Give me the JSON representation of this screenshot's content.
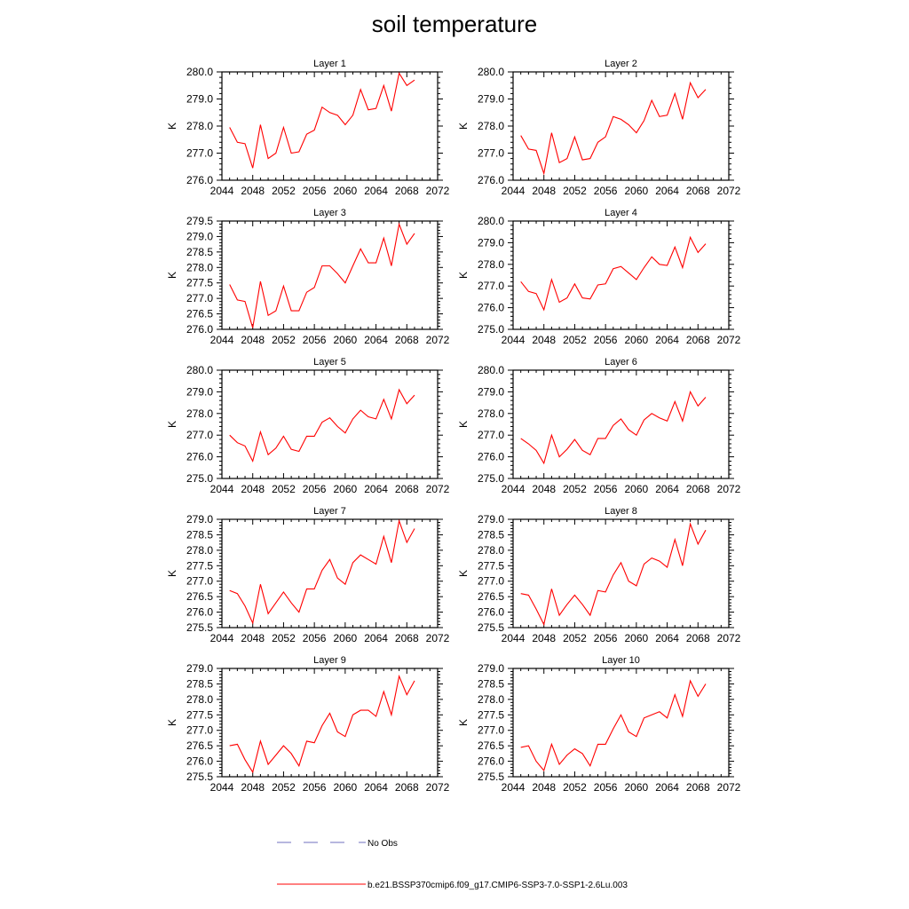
{
  "figure_title": "soil temperature",
  "legend": {
    "obs_label": "No Obs",
    "obs_color": "#6f6fbf",
    "model_label": "b.e21.BSSP370cmip6.f09_g17.CMIP6-SSP3-7.0-SSP1-2.6Lu.003",
    "model_color": "#ff0000"
  },
  "chart_data": [
    {
      "type": "line",
      "title": "Layer 1",
      "ylabel": "K",
      "xlim": [
        2044,
        2072
      ],
      "ylim": [
        276.0,
        280.0
      ],
      "xticks": [
        "2044",
        "2048",
        "2052",
        "2056",
        "2060",
        "2064",
        "2068",
        "2072"
      ],
      "yticks": [
        "276.0",
        "277.0",
        "278.0",
        "279.0",
        "280.0"
      ],
      "x": [
        2045,
        2046,
        2047,
        2048,
        2049,
        2050,
        2051,
        2052,
        2053,
        2054,
        2055,
        2056,
        2057,
        2058,
        2059,
        2060,
        2061,
        2062,
        2063,
        2064,
        2065,
        2066,
        2067,
        2068,
        2069
      ],
      "y": [
        277.95,
        277.4,
        277.35,
        276.45,
        278.05,
        276.8,
        277.0,
        277.95,
        277.0,
        277.05,
        277.7,
        277.85,
        278.7,
        278.5,
        278.4,
        278.05,
        278.4,
        279.35,
        278.6,
        278.65,
        279.5,
        278.55,
        279.95,
        279.5,
        279.7
      ]
    },
    {
      "type": "line",
      "title": "Layer 2",
      "ylabel": "K",
      "xlim": [
        2044,
        2072
      ],
      "ylim": [
        276.0,
        280.0
      ],
      "xticks": [
        "2044",
        "2048",
        "2052",
        "2056",
        "2060",
        "2064",
        "2068",
        "2072"
      ],
      "yticks": [
        "276.0",
        "277.0",
        "278.0",
        "279.0",
        "280.0"
      ],
      "x": [
        2045,
        2046,
        2047,
        2048,
        2049,
        2050,
        2051,
        2052,
        2053,
        2054,
        2055,
        2056,
        2057,
        2058,
        2059,
        2060,
        2061,
        2062,
        2063,
        2064,
        2065,
        2066,
        2067,
        2068,
        2069
      ],
      "y": [
        277.65,
        277.15,
        277.1,
        276.25,
        277.75,
        276.65,
        276.8,
        277.6,
        276.75,
        276.8,
        277.4,
        277.6,
        278.35,
        278.25,
        278.05,
        277.75,
        278.2,
        278.95,
        278.35,
        278.4,
        279.2,
        278.25,
        279.6,
        279.05,
        279.35
      ]
    },
    {
      "type": "line",
      "title": "Layer 3",
      "ylabel": "K",
      "xlim": [
        2044,
        2072
      ],
      "ylim": [
        276.0,
        279.5
      ],
      "xticks": [
        "2044",
        "2048",
        "2052",
        "2056",
        "2060",
        "2064",
        "2068",
        "2072"
      ],
      "yticks": [
        "276.0",
        "276.5",
        "277.0",
        "277.5",
        "278.0",
        "278.5",
        "279.0",
        "279.5"
      ],
      "x": [
        2045,
        2046,
        2047,
        2048,
        2049,
        2050,
        2051,
        2052,
        2053,
        2054,
        2055,
        2056,
        2057,
        2058,
        2059,
        2060,
        2061,
        2062,
        2063,
        2064,
        2065,
        2066,
        2067,
        2068,
        2069
      ],
      "y": [
        277.45,
        276.95,
        276.9,
        276.05,
        277.55,
        276.45,
        276.6,
        277.4,
        276.6,
        276.6,
        277.2,
        277.35,
        278.05,
        278.05,
        277.8,
        277.5,
        278.05,
        278.6,
        278.15,
        278.15,
        278.95,
        278.05,
        279.4,
        278.75,
        279.1
      ]
    },
    {
      "type": "line",
      "title": "Layer 4",
      "ylabel": "K",
      "xlim": [
        2044,
        2072
      ],
      "ylim": [
        275.0,
        280.0
      ],
      "xticks": [
        "2044",
        "2048",
        "2052",
        "2056",
        "2060",
        "2064",
        "2068",
        "2072"
      ],
      "yticks": [
        "275.0",
        "276.0",
        "277.0",
        "278.0",
        "279.0",
        "280.0"
      ],
      "x": [
        2045,
        2046,
        2047,
        2048,
        2049,
        2050,
        2051,
        2052,
        2053,
        2054,
        2055,
        2056,
        2057,
        2058,
        2059,
        2060,
        2061,
        2062,
        2063,
        2064,
        2065,
        2066,
        2067,
        2068,
        2069
      ],
      "y": [
        277.2,
        276.75,
        276.65,
        275.9,
        277.3,
        276.25,
        276.45,
        277.1,
        276.45,
        276.4,
        277.05,
        277.1,
        277.8,
        277.9,
        277.6,
        277.3,
        277.85,
        278.35,
        278.0,
        277.95,
        278.8,
        277.85,
        279.25,
        278.55,
        278.95
      ]
    },
    {
      "type": "line",
      "title": "Layer 5",
      "ylabel": "K",
      "xlim": [
        2044,
        2072
      ],
      "ylim": [
        275.0,
        280.0
      ],
      "xticks": [
        "2044",
        "2048",
        "2052",
        "2056",
        "2060",
        "2064",
        "2068",
        "2072"
      ],
      "yticks": [
        "275.0",
        "276.0",
        "277.0",
        "278.0",
        "279.0",
        "280.0"
      ],
      "x": [
        2045,
        2046,
        2047,
        2048,
        2049,
        2050,
        2051,
        2052,
        2053,
        2054,
        2055,
        2056,
        2057,
        2058,
        2059,
        2060,
        2061,
        2062,
        2063,
        2064,
        2065,
        2066,
        2067,
        2068,
        2069
      ],
      "y": [
        277.0,
        276.65,
        276.5,
        275.8,
        277.15,
        276.1,
        276.4,
        276.95,
        276.35,
        276.25,
        276.95,
        276.95,
        277.6,
        277.8,
        277.4,
        277.1,
        277.75,
        278.15,
        277.85,
        277.75,
        278.65,
        277.75,
        279.1,
        278.45,
        278.85
      ]
    },
    {
      "type": "line",
      "title": "Layer 6",
      "ylabel": "K",
      "xlim": [
        2044,
        2072
      ],
      "ylim": [
        275.0,
        280.0
      ],
      "xticks": [
        "2044",
        "2048",
        "2052",
        "2056",
        "2060",
        "2064",
        "2068",
        "2072"
      ],
      "yticks": [
        "275.0",
        "276.0",
        "277.0",
        "278.0",
        "279.0",
        "280.0"
      ],
      "x": [
        2045,
        2046,
        2047,
        2048,
        2049,
        2050,
        2051,
        2052,
        2053,
        2054,
        2055,
        2056,
        2057,
        2058,
        2059,
        2060,
        2061,
        2062,
        2063,
        2064,
        2065,
        2066,
        2067,
        2068,
        2069
      ],
      "y": [
        276.85,
        276.6,
        276.3,
        275.7,
        277.0,
        276.0,
        276.35,
        276.8,
        276.3,
        276.1,
        276.85,
        276.85,
        277.45,
        277.75,
        277.25,
        277.0,
        277.7,
        278.0,
        277.8,
        277.65,
        278.55,
        277.65,
        279.0,
        278.35,
        278.75
      ]
    },
    {
      "type": "line",
      "title": "Layer 7",
      "ylabel": "K",
      "xlim": [
        2044,
        2072
      ],
      "ylim": [
        275.5,
        279.0
      ],
      "xticks": [
        "2044",
        "2048",
        "2052",
        "2056",
        "2060",
        "2064",
        "2068",
        "2072"
      ],
      "yticks": [
        "275.5",
        "276.0",
        "276.5",
        "277.0",
        "277.5",
        "278.0",
        "278.5",
        "279.0"
      ],
      "x": [
        2045,
        2046,
        2047,
        2048,
        2049,
        2050,
        2051,
        2052,
        2053,
        2054,
        2055,
        2056,
        2057,
        2058,
        2059,
        2060,
        2061,
        2062,
        2063,
        2064,
        2065,
        2066,
        2067,
        2068,
        2069
      ],
      "y": [
        276.7,
        276.6,
        276.2,
        275.65,
        276.9,
        275.95,
        276.3,
        276.65,
        276.3,
        276.0,
        276.75,
        276.75,
        277.35,
        277.7,
        277.1,
        276.9,
        277.6,
        277.85,
        277.7,
        277.55,
        278.45,
        277.6,
        278.95,
        278.25,
        278.7
      ]
    },
    {
      "type": "line",
      "title": "Layer 8",
      "ylabel": "K",
      "xlim": [
        2044,
        2072
      ],
      "ylim": [
        275.5,
        279.0
      ],
      "xticks": [
        "2044",
        "2048",
        "2052",
        "2056",
        "2060",
        "2064",
        "2068",
        "2072"
      ],
      "yticks": [
        "275.5",
        "276.0",
        "276.5",
        "277.0",
        "277.5",
        "278.0",
        "278.5",
        "279.0"
      ],
      "x": [
        2045,
        2046,
        2047,
        2048,
        2049,
        2050,
        2051,
        2052,
        2053,
        2054,
        2055,
        2056,
        2057,
        2058,
        2059,
        2060,
        2061,
        2062,
        2063,
        2064,
        2065,
        2066,
        2067,
        2068,
        2069
      ],
      "y": [
        276.6,
        276.55,
        276.1,
        275.6,
        276.75,
        275.9,
        276.25,
        276.55,
        276.25,
        275.9,
        276.7,
        276.65,
        277.2,
        277.6,
        277.0,
        276.85,
        277.55,
        277.75,
        277.65,
        277.45,
        278.35,
        277.5,
        278.85,
        278.2,
        278.65
      ]
    },
    {
      "type": "line",
      "title": "Layer 9",
      "ylabel": "K",
      "xlim": [
        2044,
        2072
      ],
      "ylim": [
        275.5,
        279.0
      ],
      "xticks": [
        "2044",
        "2048",
        "2052",
        "2056",
        "2060",
        "2064",
        "2068",
        "2072"
      ],
      "yticks": [
        "275.5",
        "276.0",
        "276.5",
        "277.0",
        "277.5",
        "278.0",
        "278.5",
        "279.0"
      ],
      "x": [
        2045,
        2046,
        2047,
        2048,
        2049,
        2050,
        2051,
        2052,
        2053,
        2054,
        2055,
        2056,
        2057,
        2058,
        2059,
        2060,
        2061,
        2062,
        2063,
        2064,
        2065,
        2066,
        2067,
        2068,
        2069
      ],
      "y": [
        276.5,
        276.55,
        276.05,
        275.65,
        276.65,
        275.9,
        276.2,
        276.5,
        276.25,
        275.85,
        276.65,
        276.6,
        277.15,
        277.55,
        276.95,
        276.8,
        277.5,
        277.65,
        277.65,
        277.45,
        278.25,
        277.5,
        278.75,
        278.15,
        278.6
      ]
    },
    {
      "type": "line",
      "title": "Layer 10",
      "ylabel": "K",
      "xlim": [
        2044,
        2072
      ],
      "ylim": [
        275.5,
        279.0
      ],
      "xticks": [
        "2044",
        "2048",
        "2052",
        "2056",
        "2060",
        "2064",
        "2068",
        "2072"
      ],
      "yticks": [
        "275.5",
        "276.0",
        "276.5",
        "277.0",
        "277.5",
        "278.0",
        "278.5",
        "279.0"
      ],
      "x": [
        2045,
        2046,
        2047,
        2048,
        2049,
        2050,
        2051,
        2052,
        2053,
        2054,
        2055,
        2056,
        2057,
        2058,
        2059,
        2060,
        2061,
        2062,
        2063,
        2064,
        2065,
        2066,
        2067,
        2068,
        2069
      ],
      "y": [
        276.45,
        276.5,
        276.0,
        275.7,
        276.55,
        275.9,
        276.2,
        276.4,
        276.25,
        275.85,
        276.55,
        276.55,
        277.05,
        277.5,
        276.95,
        276.8,
        277.4,
        277.5,
        277.6,
        277.4,
        278.15,
        277.45,
        278.6,
        278.1,
        278.5
      ]
    }
  ]
}
